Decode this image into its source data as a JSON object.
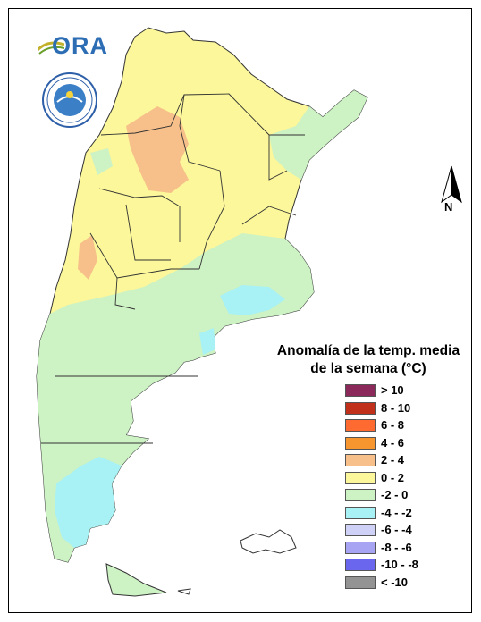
{
  "logo_text": "ORA",
  "north_label": "N",
  "legend": {
    "title_line1": "Anomalía de la temp. media",
    "title_line2": "de la semana (°C)",
    "items": [
      {
        "label": "> 10",
        "color": "#8b2a5a"
      },
      {
        "label": "8 - 10",
        "color": "#c0301a"
      },
      {
        "label": "6 - 8",
        "color": "#ff6a30"
      },
      {
        "label": "4 - 6",
        "color": "#f7962e"
      },
      {
        "label": "2 - 4",
        "color": "#f7c08a"
      },
      {
        "label": "0 - 2",
        "color": "#fbf79a"
      },
      {
        "label": "-2 - 0",
        "color": "#cdf2c4"
      },
      {
        "label": "-4 - -2",
        "color": "#a8f1f4"
      },
      {
        "label": "-6 - -4",
        "color": "#cfd1f7"
      },
      {
        "label": "-8 - -6",
        "color": "#a7a4f3"
      },
      {
        "label": "-10 - -8",
        "color": "#6a66ee"
      },
      {
        "label": "< -10",
        "color": "#939393"
      }
    ]
  }
}
